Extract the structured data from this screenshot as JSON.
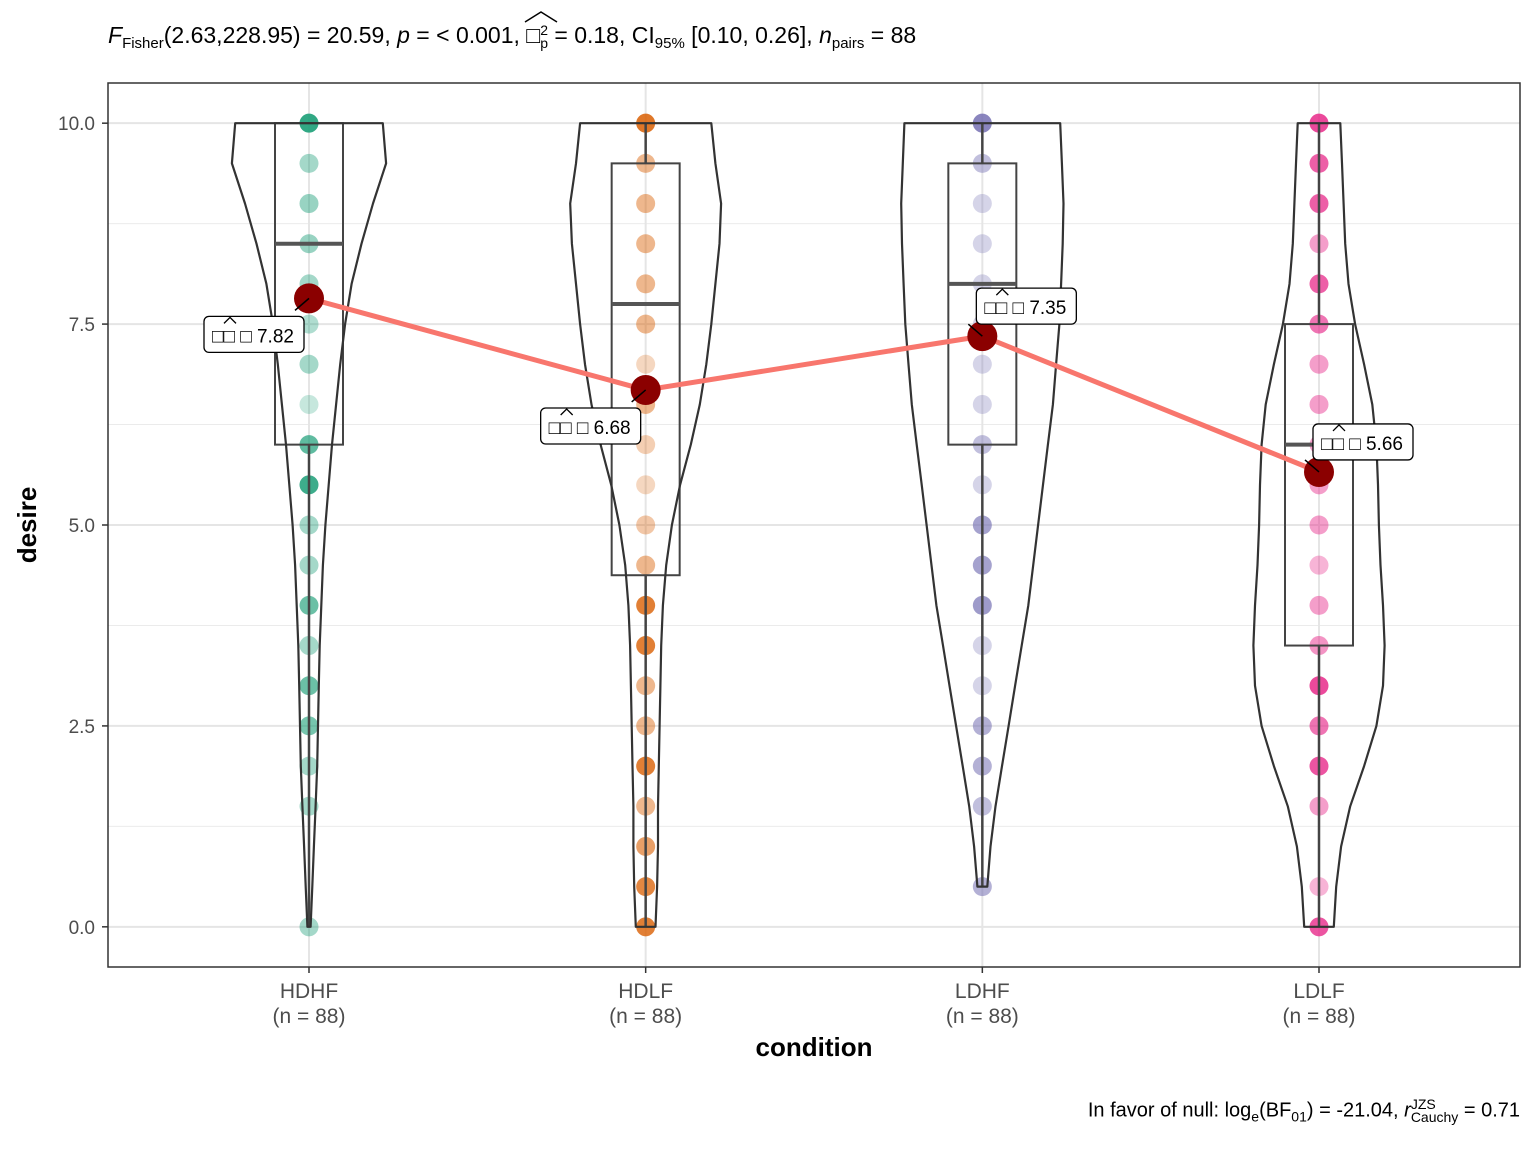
{
  "subtitle": {
    "stat_symbol": "F",
    "stat_sub": "Fisher",
    "stat_value": "(2.63,228.95) = 20.59, ",
    "p_symbol": "p",
    "p_value": " = < 0.001, ",
    "effect_symbol": "□",
    "effect_sup": "2",
    "effect_sub": "p",
    "effect_value": " = 0.18, CI",
    "ci_sub": "95%",
    "ci_value": " [0.10, 0.26], ",
    "n_symbol": "n",
    "n_sub": "pairs",
    "n_value": " = 88"
  },
  "caption": {
    "prefix": "In favor of null: log",
    "log_sub": "e",
    "bf_open": "(BF",
    "bf_sub": "01",
    "bf_rest": ") = -21.04, ",
    "r_symbol": "r",
    "r_sup": "JZS",
    "r_sub": "Cauchy",
    "r_value": " = 0.71"
  },
  "chart_data": {
    "type": "violin-box-scatter",
    "xlabel": "condition",
    "ylabel": "desire",
    "ylim": [
      -0.5,
      10.5
    ],
    "yticks": [
      0.0,
      2.5,
      5.0,
      7.5,
      10.0
    ],
    "ytick_labels": [
      "0.0",
      "2.5",
      "5.0",
      "7.5",
      "10.0"
    ],
    "grid": true,
    "mean_line_color": "#F8766D",
    "mean_point_color": "#8B0000",
    "groups": [
      {
        "category": "HDHF",
        "count_label": "(n = 88)",
        "color": "#1B9E77",
        "mean": 7.82,
        "mean_label": "□□ □ 7.82",
        "box": {
          "q1": 6.0,
          "median": 8.5,
          "q3": 10.0,
          "whisker_low": 0.0,
          "whisker_high": 10.0
        },
        "violin": [
          [
            0.0,
            0.02
          ],
          [
            0.5,
            0.04
          ],
          [
            1.0,
            0.06
          ],
          [
            1.5,
            0.08
          ],
          [
            2.0,
            0.1
          ],
          [
            2.5,
            0.11
          ],
          [
            3.0,
            0.12
          ],
          [
            3.5,
            0.13
          ],
          [
            4.0,
            0.15
          ],
          [
            4.5,
            0.17
          ],
          [
            5.0,
            0.2
          ],
          [
            5.5,
            0.24
          ],
          [
            6.0,
            0.28
          ],
          [
            6.5,
            0.33
          ],
          [
            7.0,
            0.38
          ],
          [
            7.5,
            0.44
          ],
          [
            8.0,
            0.52
          ],
          [
            8.5,
            0.64
          ],
          [
            9.0,
            0.78
          ],
          [
            9.5,
            0.94
          ],
          [
            10.0,
            0.9
          ]
        ],
        "points": [
          [
            10.0,
            0.9
          ],
          [
            9.5,
            0.4
          ],
          [
            9.0,
            0.45
          ],
          [
            8.5,
            0.45
          ],
          [
            8.0,
            0.4
          ],
          [
            7.5,
            0.35
          ],
          [
            7.0,
            0.4
          ],
          [
            6.5,
            0.25
          ],
          [
            6.0,
            0.7
          ],
          [
            5.5,
            0.85
          ],
          [
            5.0,
            0.4
          ],
          [
            4.5,
            0.4
          ],
          [
            4.0,
            0.65
          ],
          [
            3.5,
            0.4
          ],
          [
            3.0,
            0.65
          ],
          [
            2.5,
            0.6
          ],
          [
            2.0,
            0.4
          ],
          [
            1.5,
            0.4
          ],
          [
            0.0,
            0.4
          ]
        ]
      },
      {
        "category": "HDLF",
        "count_label": "(n = 88)",
        "color": "#D95F02",
        "mean": 6.68,
        "mean_label": "□□ □ 6.68",
        "box": {
          "q1": 4.375,
          "median": 7.75,
          "q3": 9.5,
          "whisker_low": 0.0,
          "whisker_high": 10.0
        },
        "violin": [
          [
            0.0,
            0.12
          ],
          [
            0.5,
            0.14
          ],
          [
            1.0,
            0.15
          ],
          [
            1.5,
            0.15
          ],
          [
            2.0,
            0.16
          ],
          [
            2.5,
            0.17
          ],
          [
            3.0,
            0.18
          ],
          [
            3.5,
            0.19
          ],
          [
            4.0,
            0.21
          ],
          [
            4.5,
            0.25
          ],
          [
            5.0,
            0.32
          ],
          [
            5.5,
            0.42
          ],
          [
            6.0,
            0.55
          ],
          [
            6.5,
            0.66
          ],
          [
            7.0,
            0.74
          ],
          [
            7.5,
            0.8
          ],
          [
            8.0,
            0.85
          ],
          [
            8.5,
            0.9
          ],
          [
            9.0,
            0.92
          ],
          [
            9.5,
            0.85
          ],
          [
            10.0,
            0.8
          ]
        ],
        "points": [
          [
            10.0,
            0.85
          ],
          [
            9.5,
            0.45
          ],
          [
            9.0,
            0.45
          ],
          [
            8.5,
            0.45
          ],
          [
            8.0,
            0.45
          ],
          [
            7.5,
            0.45
          ],
          [
            7.0,
            0.25
          ],
          [
            6.5,
            0.45
          ],
          [
            6.0,
            0.3
          ],
          [
            5.5,
            0.25
          ],
          [
            5.0,
            0.35
          ],
          [
            4.5,
            0.45
          ],
          [
            4.0,
            0.8
          ],
          [
            3.5,
            0.8
          ],
          [
            3.0,
            0.45
          ],
          [
            2.5,
            0.45
          ],
          [
            2.0,
            0.8
          ],
          [
            1.5,
            0.45
          ],
          [
            1.0,
            0.6
          ],
          [
            0.5,
            0.75
          ],
          [
            0.0,
            0.8
          ]
        ]
      },
      {
        "category": "LDHF",
        "count_label": "(n = 88)",
        "color": "#7570B3",
        "mean": 7.35,
        "mean_label": "□□ □ 7.35",
        "box": {
          "q1": 6.0,
          "median": 8.0,
          "q3": 9.5,
          "whisker_low": 0.5,
          "whisker_high": 10.0
        },
        "violin": [
          [
            0.5,
            0.06
          ],
          [
            1.0,
            0.1
          ],
          [
            1.5,
            0.16
          ],
          [
            2.0,
            0.24
          ],
          [
            2.5,
            0.32
          ],
          [
            3.0,
            0.4
          ],
          [
            3.5,
            0.48
          ],
          [
            4.0,
            0.56
          ],
          [
            4.5,
            0.62
          ],
          [
            5.0,
            0.68
          ],
          [
            5.5,
            0.74
          ],
          [
            6.0,
            0.8
          ],
          [
            6.5,
            0.86
          ],
          [
            7.0,
            0.9
          ],
          [
            7.5,
            0.94
          ],
          [
            8.0,
            0.96
          ],
          [
            8.5,
            0.98
          ],
          [
            9.0,
            0.99
          ],
          [
            9.5,
            0.97
          ],
          [
            10.0,
            0.95
          ]
        ],
        "points": [
          [
            10.0,
            0.85
          ],
          [
            9.5,
            0.45
          ],
          [
            9.0,
            0.3
          ],
          [
            8.5,
            0.3
          ],
          [
            8.0,
            0.3
          ],
          [
            7.5,
            0.3
          ],
          [
            7.0,
            0.3
          ],
          [
            6.5,
            0.3
          ],
          [
            6.0,
            0.45
          ],
          [
            5.5,
            0.3
          ],
          [
            5.0,
            0.65
          ],
          [
            4.5,
            0.65
          ],
          [
            4.0,
            0.7
          ],
          [
            3.5,
            0.3
          ],
          [
            3.0,
            0.3
          ],
          [
            2.5,
            0.55
          ],
          [
            2.0,
            0.55
          ],
          [
            1.5,
            0.45
          ],
          [
            0.5,
            0.55
          ]
        ]
      },
      {
        "category": "LDLF",
        "count_label": "(n = 88)",
        "color": "#E7298A",
        "mean": 5.66,
        "mean_label": "□□ □ 5.66",
        "box": {
          "q1": 3.5,
          "median": 6.0,
          "q3": 7.5,
          "whisker_low": 0.0,
          "whisker_high": 10.0
        },
        "violin": [
          [
            0.0,
            0.18
          ],
          [
            0.5,
            0.21
          ],
          [
            1.0,
            0.27
          ],
          [
            1.5,
            0.38
          ],
          [
            2.0,
            0.55
          ],
          [
            2.5,
            0.7
          ],
          [
            3.0,
            0.78
          ],
          [
            3.5,
            0.8
          ],
          [
            4.0,
            0.78
          ],
          [
            4.5,
            0.75
          ],
          [
            5.0,
            0.73
          ],
          [
            5.5,
            0.72
          ],
          [
            6.0,
            0.7
          ],
          [
            6.5,
            0.65
          ],
          [
            7.0,
            0.55
          ],
          [
            7.5,
            0.44
          ],
          [
            8.0,
            0.36
          ],
          [
            8.5,
            0.32
          ],
          [
            9.0,
            0.3
          ],
          [
            9.5,
            0.28
          ],
          [
            10.0,
            0.26
          ]
        ],
        "points": [
          [
            10.0,
            0.85
          ],
          [
            9.5,
            0.75
          ],
          [
            9.0,
            0.75
          ],
          [
            8.5,
            0.45
          ],
          [
            8.0,
            0.75
          ],
          [
            7.5,
            0.65
          ],
          [
            7.0,
            0.45
          ],
          [
            6.5,
            0.45
          ],
          [
            6.0,
            0.45
          ],
          [
            5.5,
            0.45
          ],
          [
            5.0,
            0.45
          ],
          [
            4.5,
            0.35
          ],
          [
            4.0,
            0.45
          ],
          [
            3.5,
            0.5
          ],
          [
            3.0,
            0.85
          ],
          [
            2.5,
            0.65
          ],
          [
            2.0,
            0.8
          ],
          [
            1.5,
            0.45
          ],
          [
            0.5,
            0.35
          ],
          [
            0.0,
            0.8
          ]
        ]
      }
    ]
  }
}
